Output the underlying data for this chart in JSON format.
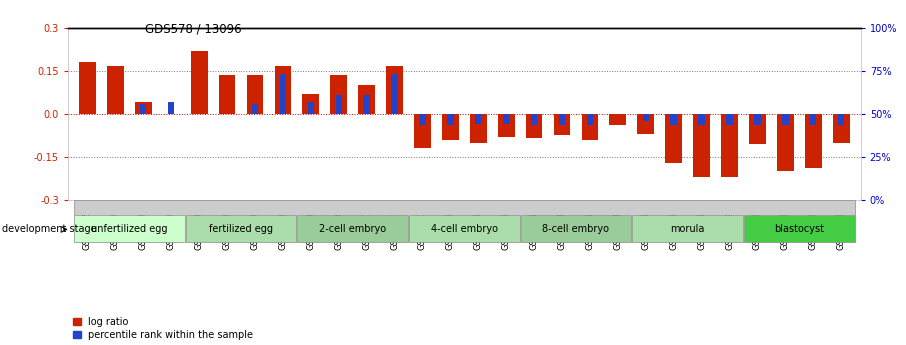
{
  "title": "GDS578 / 13096",
  "categories": [
    "GSM14658",
    "GSM14660",
    "GSM14661",
    "GSM14662",
    "GSM14663",
    "GSM14664",
    "GSM14665",
    "GSM14666",
    "GSM14667",
    "GSM14668",
    "GSM14677",
    "GSM14678",
    "GSM14679",
    "GSM14680",
    "GSM14681",
    "GSM14682",
    "GSM14683",
    "GSM14684",
    "GSM14685",
    "GSM14686",
    "GSM14687",
    "GSM14688",
    "GSM14689",
    "GSM14690",
    "GSM14691",
    "GSM14692",
    "GSM14693",
    "GSM14694"
  ],
  "log_ratio": [
    0.18,
    0.165,
    0.04,
    0.0,
    0.22,
    0.135,
    0.135,
    0.165,
    0.07,
    0.135,
    0.1,
    0.165,
    -0.12,
    -0.09,
    -0.1,
    -0.08,
    -0.085,
    -0.075,
    -0.09,
    -0.04,
    -0.07,
    -0.17,
    -0.22,
    -0.22,
    -0.105,
    -0.2,
    -0.19,
    -0.1
  ],
  "percentile_rank": [
    0.0,
    0.0,
    0.035,
    0.04,
    0.0,
    0.0,
    0.035,
    0.14,
    0.04,
    0.065,
    0.065,
    0.14,
    -0.04,
    -0.04,
    -0.035,
    -0.035,
    -0.04,
    -0.04,
    -0.04,
    0.0,
    -0.025,
    -0.04,
    -0.04,
    -0.04,
    -0.04,
    -0.04,
    -0.04,
    -0.04
  ],
  "stages": [
    {
      "label": "unfertilized egg",
      "start": 0,
      "end": 4,
      "color": "#ccffcc"
    },
    {
      "label": "fertilized egg",
      "start": 4,
      "end": 8,
      "color": "#aaddaa"
    },
    {
      "label": "2-cell embryo",
      "start": 8,
      "end": 12,
      "color": "#99cc99"
    },
    {
      "label": "4-cell embryo",
      "start": 12,
      "end": 16,
      "color": "#aaddaa"
    },
    {
      "label": "8-cell embryo",
      "start": 16,
      "end": 20,
      "color": "#99cc99"
    },
    {
      "label": "morula",
      "start": 20,
      "end": 24,
      "color": "#aaddaa"
    },
    {
      "label": "blastocyst",
      "start": 24,
      "end": 28,
      "color": "#44cc44"
    }
  ],
  "ylim": [
    -0.3,
    0.3
  ],
  "yticks": [
    -0.3,
    -0.15,
    0.0,
    0.15,
    0.3
  ],
  "right_yticks": [
    0,
    25,
    50,
    75,
    100
  ],
  "bar_color_red": "#cc2200",
  "bar_color_blue": "#2244cc",
  "background_color": "#ffffff"
}
